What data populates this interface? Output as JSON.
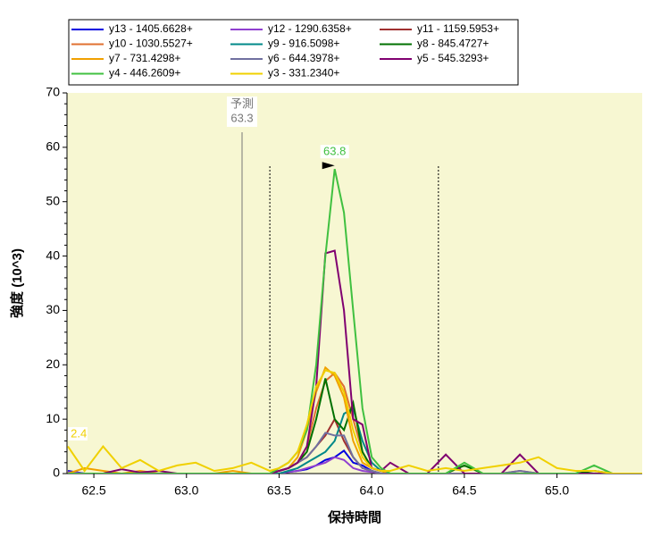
{
  "chart_data": {
    "type": "line",
    "xlabel": "保持時間",
    "ylabel": "強度 (10^3)",
    "xlim": [
      62.355,
      65.46
    ],
    "ylim": [
      0,
      70
    ],
    "xticks": [
      62.5,
      {
        "value": 63,
        "label": "63.0"
      },
      63.5,
      {
        "value": 64,
        "label": "64.0"
      },
      64.5,
      {
        "value": 65,
        "label": "65.0"
      }
    ],
    "yticks": [
      0,
      10,
      20,
      30,
      40,
      50,
      60,
      70
    ],
    "background": "#f7f7d2",
    "predicted": {
      "label": "予測",
      "value": 63.3
    },
    "integration_bounds": [
      63.45,
      64.36
    ],
    "peak_label": {
      "value": 63.8,
      "color": "#40c040"
    },
    "edge_label": {
      "text": "2.4",
      "x": 62.37,
      "color": "#f0d000"
    },
    "x": [
      62.36,
      62.45,
      62.55,
      62.65,
      62.75,
      62.85,
      62.95,
      63.05,
      63.15,
      63.25,
      63.35,
      63.45,
      63.5,
      63.55,
      63.6,
      63.65,
      63.7,
      63.75,
      63.8,
      63.85,
      63.9,
      63.95,
      64.0,
      64.05,
      64.1,
      64.2,
      64.3,
      64.4,
      64.5,
      64.6,
      64.7,
      64.8,
      64.9,
      65.0,
      65.1,
      65.2,
      65.3,
      65.46
    ],
    "series": [
      {
        "name": "y13 - 1405.6628+",
        "color": "#0000e0",
        "values": [
          0.5,
          0,
          0,
          0,
          0,
          0,
          0,
          0,
          0,
          0,
          0,
          0,
          0,
          0.3,
          0.5,
          0.8,
          1.5,
          2.5,
          3,
          4.2,
          2,
          1.5,
          0.5,
          0,
          0,
          0,
          0,
          0,
          0,
          0,
          0,
          0,
          0,
          0,
          0,
          0,
          0,
          0
        ]
      },
      {
        "name": "y12 - 1290.6358+",
        "color": "#9040d0",
        "values": [
          0.3,
          0,
          0,
          0,
          0,
          0,
          0,
          0,
          0,
          0,
          0,
          0,
          0,
          0.3,
          0.5,
          1,
          1.5,
          2,
          3,
          2.5,
          1,
          0.5,
          0.3,
          0,
          0,
          0,
          0,
          0,
          0,
          0,
          0,
          0,
          0,
          0,
          0,
          0,
          0,
          0
        ]
      },
      {
        "name": "y11 - 1159.5953+",
        "color": "#a03030",
        "values": [
          0,
          0,
          0,
          0,
          0,
          0,
          0,
          0,
          0,
          0,
          0,
          0,
          0.5,
          1,
          2,
          3,
          5,
          7,
          10,
          6,
          3,
          1,
          0.5,
          0,
          0,
          0,
          0,
          0,
          0,
          0,
          0,
          0.5,
          0,
          0,
          0,
          0,
          0,
          0
        ]
      },
      {
        "name": "y10 - 1030.5527+",
        "color": "#e07030",
        "values": [
          0,
          0,
          0,
          0,
          0,
          0,
          0,
          0,
          0,
          0,
          0,
          0,
          0.5,
          1,
          2,
          5,
          12,
          17,
          18.5,
          16,
          10,
          4,
          1,
          0.5,
          0,
          0,
          0,
          0,
          0,
          0,
          0,
          0,
          0,
          0,
          0,
          0,
          0,
          0
        ]
      },
      {
        "name": "y9 - 916.5098+",
        "color": "#008888",
        "values": [
          0,
          0,
          0,
          0,
          0,
          0,
          0,
          0,
          0,
          0,
          0,
          0,
          0,
          0.5,
          1,
          2,
          3,
          4,
          6,
          11,
          12,
          6,
          2,
          0.5,
          0,
          0,
          0,
          0,
          0,
          0,
          0,
          0,
          0,
          0,
          0,
          0,
          0,
          0
        ]
      },
      {
        "name": "y8 - 845.4727+",
        "color": "#007000",
        "values": [
          0,
          0,
          0,
          0,
          0,
          0,
          0,
          0,
          0,
          0,
          0,
          0,
          0.5,
          1,
          2,
          4,
          10,
          17.5,
          10,
          8,
          13,
          4,
          1,
          0.5,
          0,
          0,
          0,
          0,
          1.5,
          0,
          0,
          0,
          0,
          0,
          0,
          0.5,
          0,
          0
        ]
      },
      {
        "name": "y7 - 731.4298+",
        "color": "#f0a000",
        "values": [
          0,
          1,
          0.5,
          0,
          0.5,
          0,
          0,
          0,
          0,
          0.5,
          0,
          0,
          0.5,
          1,
          3,
          8,
          15,
          19.5,
          18,
          14,
          6,
          2,
          1,
          0.5,
          0,
          0,
          0,
          0,
          0,
          0,
          0,
          0,
          0,
          0,
          0,
          0,
          0,
          0
        ]
      },
      {
        "name": "y6 - 644.3978+",
        "color": "#7070a0",
        "values": [
          0,
          0,
          0,
          0,
          0,
          0,
          0,
          0,
          0,
          0,
          0,
          0,
          0.5,
          1,
          2,
          3,
          5,
          7.5,
          7,
          7,
          3,
          1,
          0.5,
          0,
          0,
          0,
          0,
          0,
          0,
          0,
          0,
          0.5,
          0,
          0,
          0,
          0,
          0,
          0
        ]
      },
      {
        "name": "y5 - 545.3293+",
        "color": "#800070",
        "values": [
          0,
          0,
          0,
          0.8,
          0.2,
          0.5,
          0,
          0,
          0,
          0,
          0,
          0,
          0.5,
          1,
          2,
          5,
          16,
          40.5,
          41,
          30,
          10,
          9,
          1,
          0.5,
          2,
          0,
          0,
          3.5,
          0,
          0,
          0,
          3.5,
          0,
          0,
          0,
          0,
          0,
          0
        ]
      },
      {
        "name": "y4 - 446.2609+",
        "color": "#40c040",
        "values": [
          0,
          0,
          0,
          0,
          0,
          0,
          0,
          0,
          0,
          0,
          0,
          0,
          1,
          2,
          4,
          8,
          20,
          40,
          56,
          48,
          30,
          12,
          3,
          1,
          0,
          0,
          0,
          0,
          2,
          0,
          0,
          0,
          0,
          0,
          0,
          1.5,
          0,
          0
        ]
      },
      {
        "name": "y3 - 331.2340+",
        "color": "#f0d000",
        "values": [
          5,
          0.5,
          5,
          1,
          2.5,
          0.5,
          1.5,
          2,
          0.5,
          1,
          2,
          0.5,
          1,
          2,
          4,
          9,
          16,
          19,
          18.5,
          15,
          8,
          3,
          1,
          0.5,
          0.5,
          1.5,
          0.5,
          1,
          0.5,
          1,
          1.5,
          2,
          3,
          1,
          0.5,
          0.5,
          0,
          0
        ]
      }
    ]
  }
}
